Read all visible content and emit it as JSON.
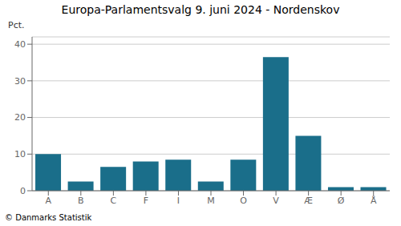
{
  "chart_data": {
    "type": "bar",
    "title": "Europa-Parlamentsvalg 9. juni 2024 - Nordenskov",
    "ylabel": "Pct.",
    "annotations": [
      "© Danmarks Statistik"
    ],
    "categories": [
      "A",
      "B",
      "C",
      "F",
      "I",
      "M",
      "O",
      "V",
      "Æ",
      "Ø",
      "Å"
    ],
    "values": [
      10.0,
      2.5,
      6.5,
      8.0,
      8.5,
      2.5,
      8.5,
      36.5,
      15.0,
      1.0,
      1.0
    ],
    "color": "#1a6e8a",
    "ylim": [
      0,
      42
    ],
    "yticks": [
      0,
      10,
      20,
      30,
      40
    ],
    "grid": true
  }
}
